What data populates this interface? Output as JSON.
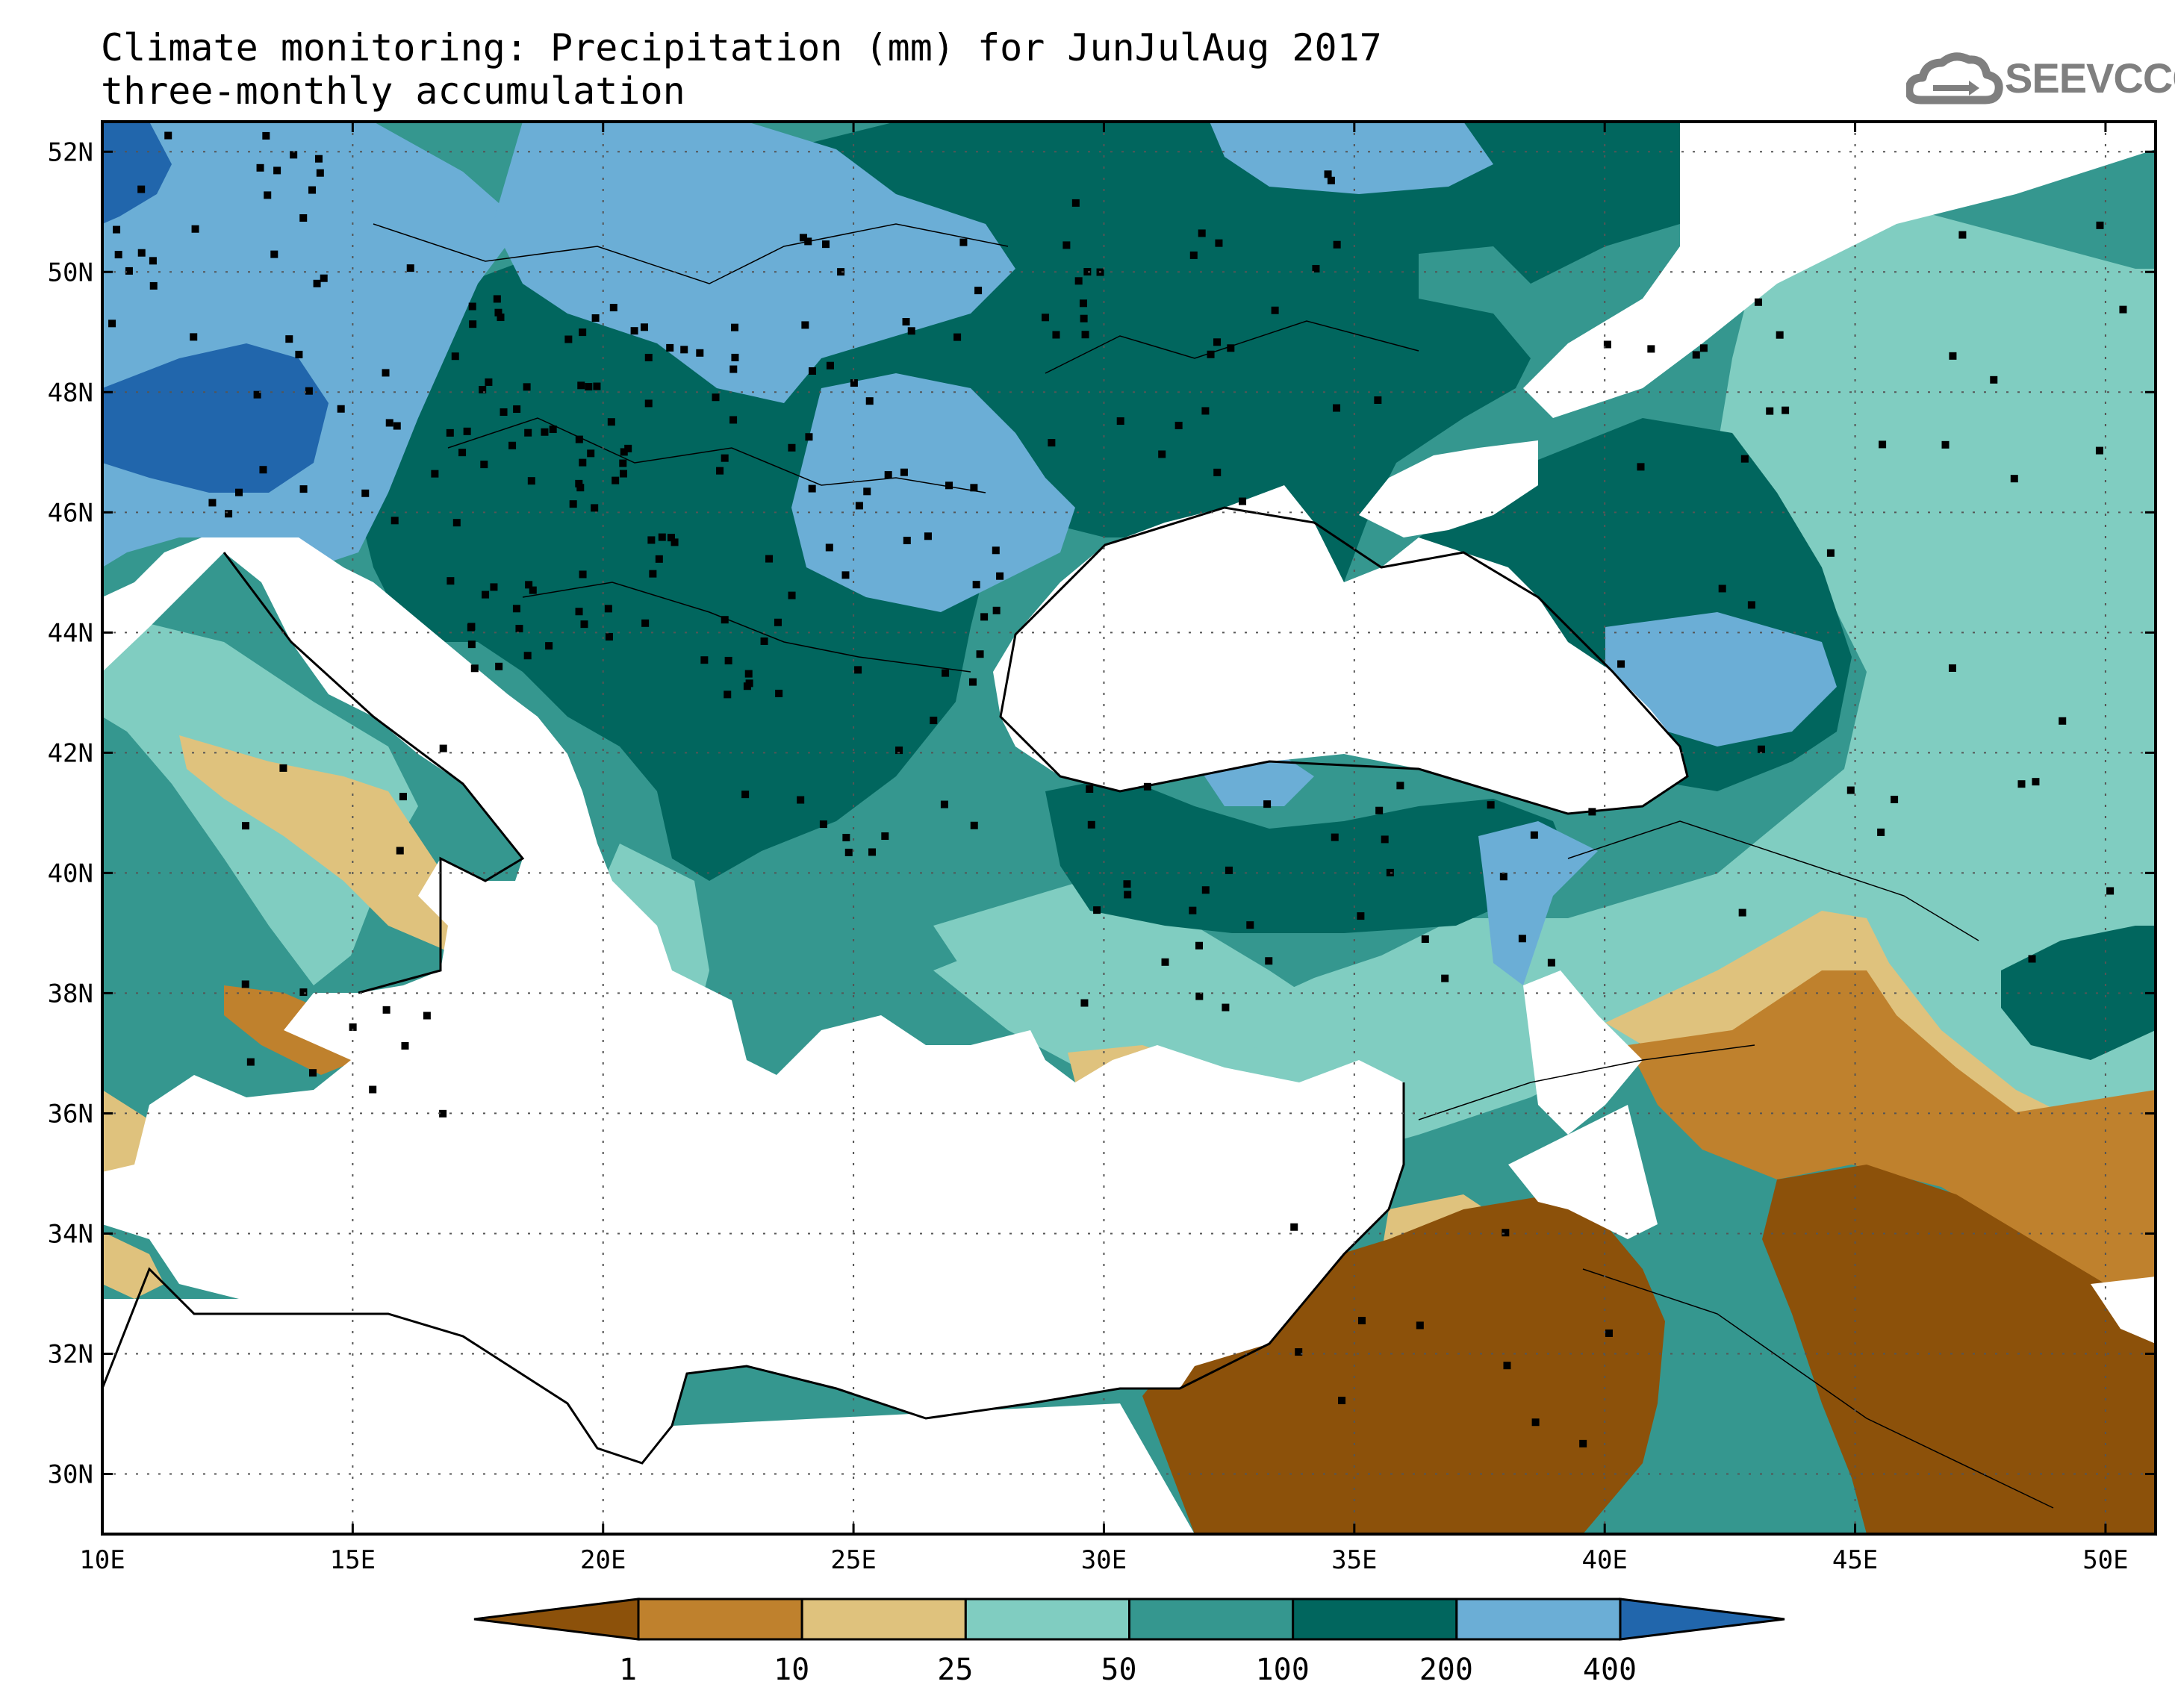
{
  "title": {
    "line1": "Climate monitoring: Precipitation (mm) for JunJulAug 2017",
    "line2": "three-monthly accumulation"
  },
  "logo": {
    "text": "SEEVCCC",
    "icon": "cloud-icon",
    "color": "#7f7f7f"
  },
  "map": {
    "lon_range": [
      10,
      51
    ],
    "lat_range": [
      29,
      52.5
    ],
    "lon_ticks": [
      {
        "value": 10,
        "label": "10E"
      },
      {
        "value": 15,
        "label": "15E"
      },
      {
        "value": 20,
        "label": "20E"
      },
      {
        "value": 25,
        "label": "25E"
      },
      {
        "value": 30,
        "label": "30E"
      },
      {
        "value": 35,
        "label": "35E"
      },
      {
        "value": 40,
        "label": "40E"
      },
      {
        "value": 45,
        "label": "45E"
      },
      {
        "value": 50,
        "label": "50E"
      }
    ],
    "lat_ticks": [
      {
        "value": 30,
        "label": "30N"
      },
      {
        "value": 32,
        "label": "32N"
      },
      {
        "value": 34,
        "label": "34N"
      },
      {
        "value": 36,
        "label": "36N"
      },
      {
        "value": 38,
        "label": "38N"
      },
      {
        "value": 40,
        "label": "40N"
      },
      {
        "value": 42,
        "label": "42N"
      },
      {
        "value": 44,
        "label": "44N"
      },
      {
        "value": 46,
        "label": "46N"
      },
      {
        "value": 48,
        "label": "48N"
      },
      {
        "value": 50,
        "label": "50N"
      },
      {
        "value": 52,
        "label": "52N"
      }
    ],
    "grid": "dotted"
  },
  "colorbar": {
    "thresholds": [
      "1",
      "10",
      "25",
      "50",
      "100",
      "200",
      "400"
    ],
    "colors": [
      "#8c510a",
      "#bf812d",
      "#dfc27d",
      "#80cdc1",
      "#35978f",
      "#01665e",
      "#6baed6",
      "#2166ac"
    ]
  }
}
